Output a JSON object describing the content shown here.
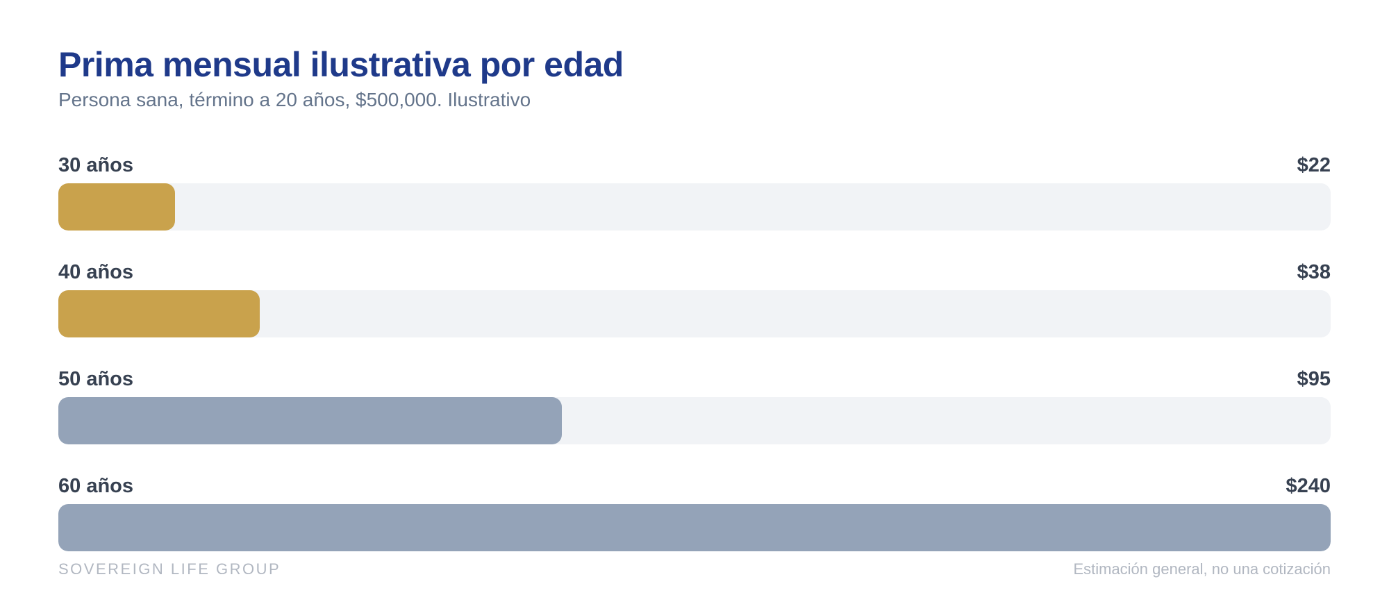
{
  "chart_data": {
    "type": "bar",
    "orientation": "horizontal",
    "title": "Prima mensual ilustrativa por edad",
    "subtitle": "Persona sana, término a 20 años, $500,000. Ilustrativo",
    "categories": [
      "30 años",
      "40 años",
      "50 años",
      "60 años"
    ],
    "values": [
      22,
      38,
      95,
      240
    ],
    "value_labels": [
      "$22",
      "$38",
      "$95",
      "$240"
    ],
    "xlim": [
      0,
      240
    ],
    "colors": [
      "#c9a24c",
      "#c9a24c",
      "#94a3b8",
      "#94a3b8"
    ],
    "track_color": "#f1f3f6",
    "grid": false
  },
  "footer": {
    "brand": "SOVEREIGN LIFE GROUP",
    "note": "Estimación general, no una cotización"
  }
}
